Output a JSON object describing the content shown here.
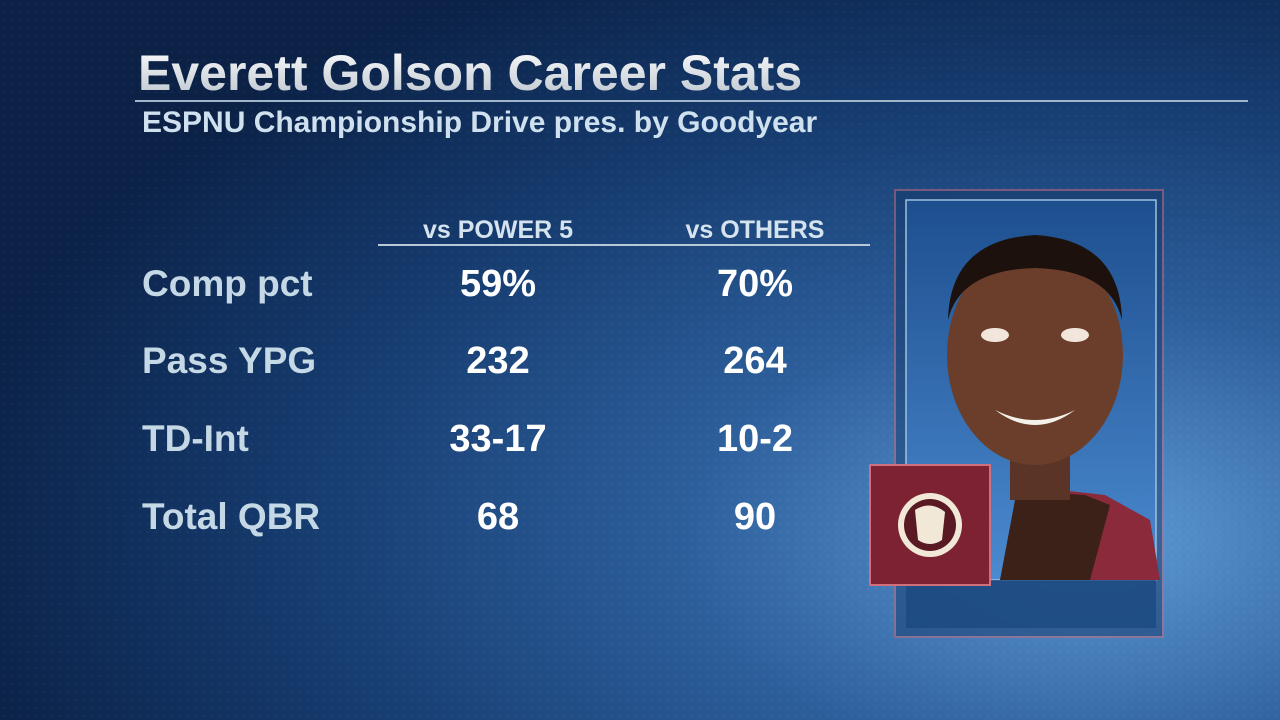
{
  "header": {
    "title": "Everett Golson Career Stats",
    "subtitle": "ESPNU Championship Drive pres. by Goodyear"
  },
  "table": {
    "columns": [
      "vs POWER 5",
      "vs OTHERS"
    ],
    "rows": [
      [
        "Comp pct",
        "59%",
        "70%"
      ],
      [
        "Pass YPG",
        "232",
        "264"
      ],
      [
        "TD-Int",
        "33-17",
        "10-2"
      ],
      [
        "Total QBR",
        "68",
        "90"
      ]
    ]
  }
}
